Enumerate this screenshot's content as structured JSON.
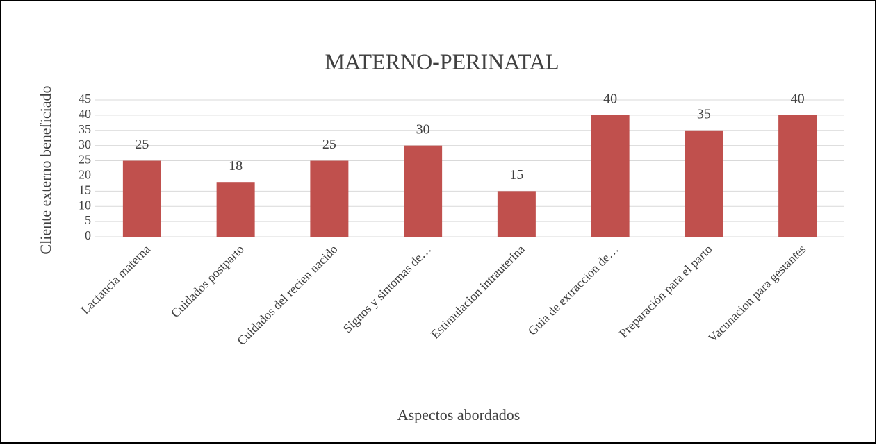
{
  "chart_data": {
    "type": "bar",
    "title": "MATERNO-PERINATAL",
    "x_label": "Aspectos abordados",
    "y_label": "Cliente externo beneficiado",
    "categories": [
      "Lactancia materna",
      "Cuidados postparto",
      "Cuidados del recien nacido",
      "Signos y sintomas de…",
      "Estimulacion intrauterina",
      "Guia de extraccion de…",
      "Preparación para el parto",
      "Vacunacion para gestantes"
    ],
    "values": [
      25,
      18,
      25,
      30,
      15,
      40,
      35,
      40
    ],
    "color": "#c0504d",
    "ylim": [
      0,
      45
    ],
    "yticks": [
      0,
      5,
      10,
      15,
      20,
      25,
      30,
      35,
      40,
      45
    ],
    "grid": true
  }
}
